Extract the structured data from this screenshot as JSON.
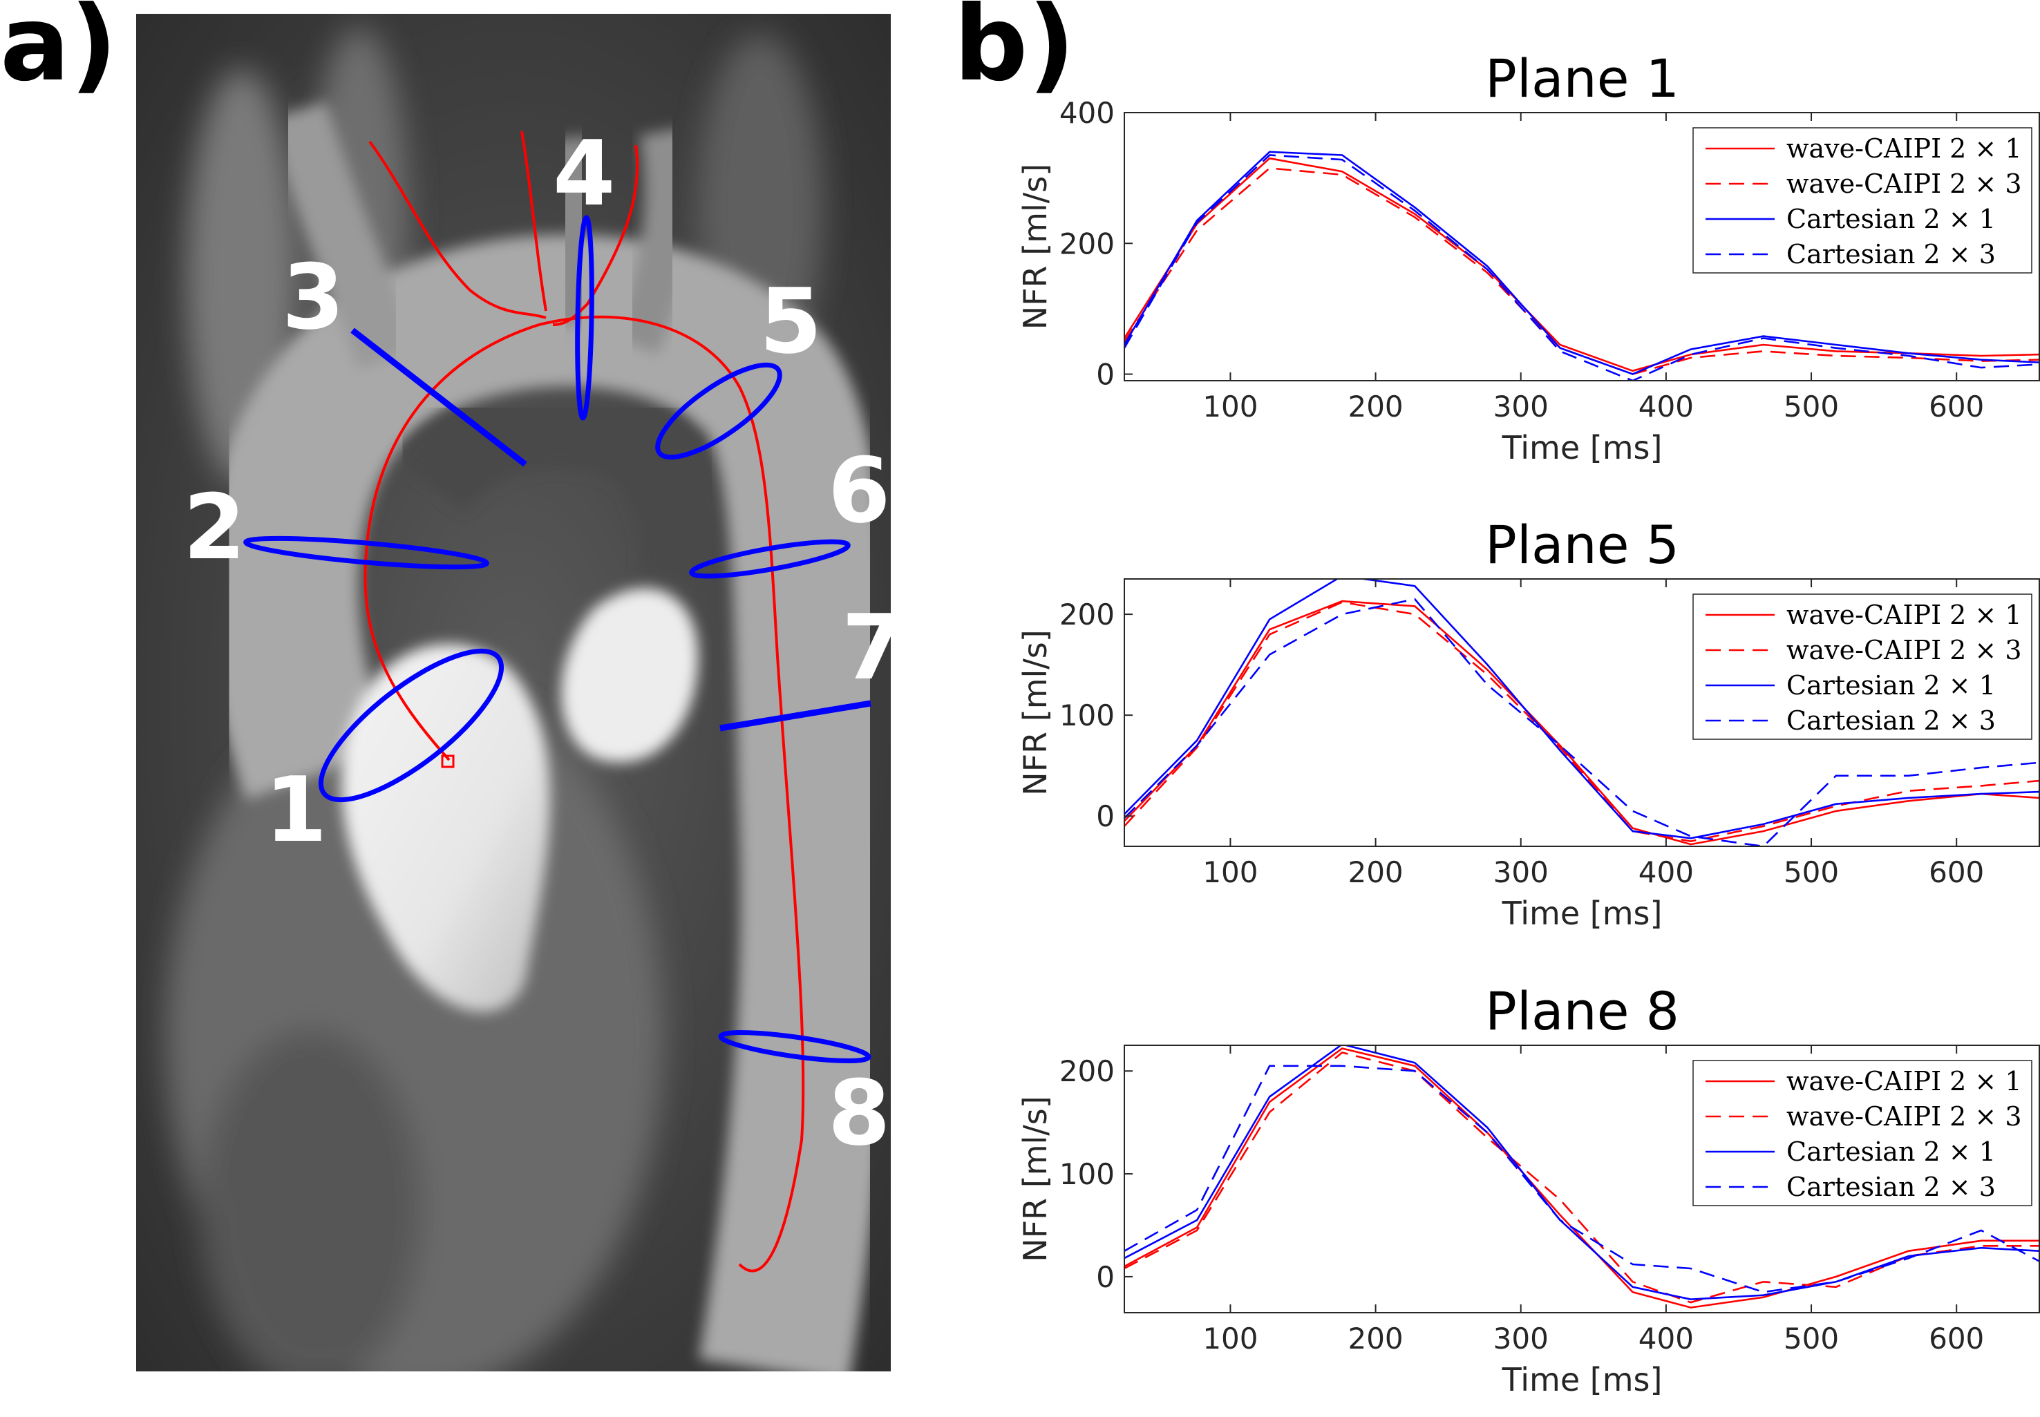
{
  "figure": {
    "panel_a_label": "a)",
    "panel_b_label": "b)",
    "plane_numbers": [
      "1",
      "2",
      "3",
      "4",
      "5",
      "6",
      "7",
      "8"
    ],
    "colors": {
      "wave": "#ff0000",
      "cartesian": "#0000ff",
      "centerline": "#ff0000",
      "plane_outline": "#0000ff"
    }
  },
  "chart_data": [
    {
      "type": "line",
      "title": "Plane 1",
      "xlabel": "Time [ms]",
      "ylabel": "NFR [ml/s]",
      "xlim": [
        27,
        657
      ],
      "ylim": [
        -10,
        400
      ],
      "xticks": [
        100,
        200,
        300,
        400,
        500,
        600
      ],
      "yticks": [
        0,
        200,
        400
      ],
      "x": [
        27,
        77,
        127,
        177,
        227,
        277,
        327,
        377,
        417,
        467,
        517,
        567,
        617,
        657
      ],
      "series": [
        {
          "name": "wave-CAIPI 2 × 1",
          "style": "solid",
          "color": "#ff0000",
          "values": [
            55,
            230,
            330,
            310,
            245,
            160,
            45,
            5,
            30,
            45,
            35,
            32,
            28,
            30
          ]
        },
        {
          "name": "wave-CAIPI 2 × 3",
          "style": "dashed",
          "color": "#ff0000",
          "values": [
            50,
            220,
            315,
            305,
            240,
            155,
            40,
            0,
            25,
            35,
            28,
            25,
            20,
            22
          ]
        },
        {
          "name": "Cartesian 2 × 1",
          "style": "solid",
          "color": "#0000ff",
          "values": [
            45,
            235,
            340,
            335,
            255,
            165,
            40,
            0,
            38,
            58,
            45,
            32,
            22,
            18
          ]
        },
        {
          "name": "Cartesian 2 × 3",
          "style": "dashed",
          "color": "#0000ff",
          "values": [
            40,
            232,
            335,
            328,
            250,
            160,
            35,
            -10,
            30,
            55,
            40,
            28,
            10,
            15
          ]
        }
      ],
      "legend": "top-right"
    },
    {
      "type": "line",
      "title": "Plane 5",
      "xlabel": "Time [ms]",
      "ylabel": "NFR [ml/s]",
      "xlim": [
        27,
        657
      ],
      "ylim": [
        -30,
        235
      ],
      "xticks": [
        100,
        200,
        300,
        400,
        500,
        600
      ],
      "yticks": [
        0,
        100,
        200
      ],
      "x": [
        27,
        77,
        127,
        177,
        227,
        277,
        327,
        377,
        417,
        467,
        517,
        567,
        617,
        657
      ],
      "series": [
        {
          "name": "wave-CAIPI 2 × 1",
          "style": "solid",
          "color": "#ff0000",
          "values": [
            -5,
            70,
            185,
            213,
            208,
            145,
            70,
            -12,
            -28,
            -15,
            5,
            15,
            22,
            18
          ]
        },
        {
          "name": "wave-CAIPI 2 × 3",
          "style": "dashed",
          "color": "#ff0000",
          "values": [
            -10,
            68,
            180,
            212,
            200,
            140,
            68,
            -15,
            -25,
            -10,
            10,
            25,
            30,
            35
          ]
        },
        {
          "name": "Cartesian 2 × 1",
          "style": "solid",
          "color": "#0000ff",
          "values": [
            2,
            75,
            195,
            238,
            228,
            150,
            65,
            -15,
            -22,
            -8,
            12,
            18,
            22,
            24
          ]
        },
        {
          "name": "Cartesian 2 × 3",
          "style": "dashed",
          "color": "#0000ff",
          "values": [
            -2,
            70,
            160,
            200,
            215,
            130,
            70,
            5,
            -20,
            -30,
            40,
            40,
            48,
            53
          ]
        }
      ],
      "legend": "top-right"
    },
    {
      "type": "line",
      "title": "Plane 8",
      "xlabel": "Time [ms]",
      "ylabel": "NFR [ml/s]",
      "xlim": [
        27,
        657
      ],
      "ylim": [
        -35,
        225
      ],
      "xticks": [
        100,
        200,
        300,
        400,
        500,
        600
      ],
      "yticks": [
        0,
        100,
        200
      ],
      "x": [
        27,
        77,
        127,
        177,
        227,
        277,
        327,
        377,
        417,
        467,
        517,
        567,
        617,
        657
      ],
      "series": [
        {
          "name": "wave-CAIPI 2 × 1",
          "style": "solid",
          "color": "#ff0000",
          "values": [
            10,
            48,
            170,
            222,
            205,
            140,
            60,
            -15,
            -30,
            -20,
            0,
            25,
            35,
            35
          ]
        },
        {
          "name": "wave-CAIPI 2 × 3",
          "style": "dashed",
          "color": "#ff0000",
          "values": [
            8,
            45,
            160,
            218,
            200,
            135,
            75,
            -5,
            -25,
            -5,
            -10,
            20,
            30,
            30
          ]
        },
        {
          "name": "Cartesian 2 × 1",
          "style": "solid",
          "color": "#0000ff",
          "values": [
            18,
            55,
            175,
            226,
            208,
            145,
            55,
            -10,
            -22,
            -18,
            -5,
            20,
            28,
            25
          ]
        },
        {
          "name": "Cartesian 2 × 3",
          "style": "dashed",
          "color": "#0000ff",
          "values": [
            25,
            65,
            205,
            205,
            200,
            140,
            55,
            12,
            8,
            -15,
            -5,
            18,
            45,
            15
          ]
        }
      ],
      "legend": "top-right"
    }
  ]
}
